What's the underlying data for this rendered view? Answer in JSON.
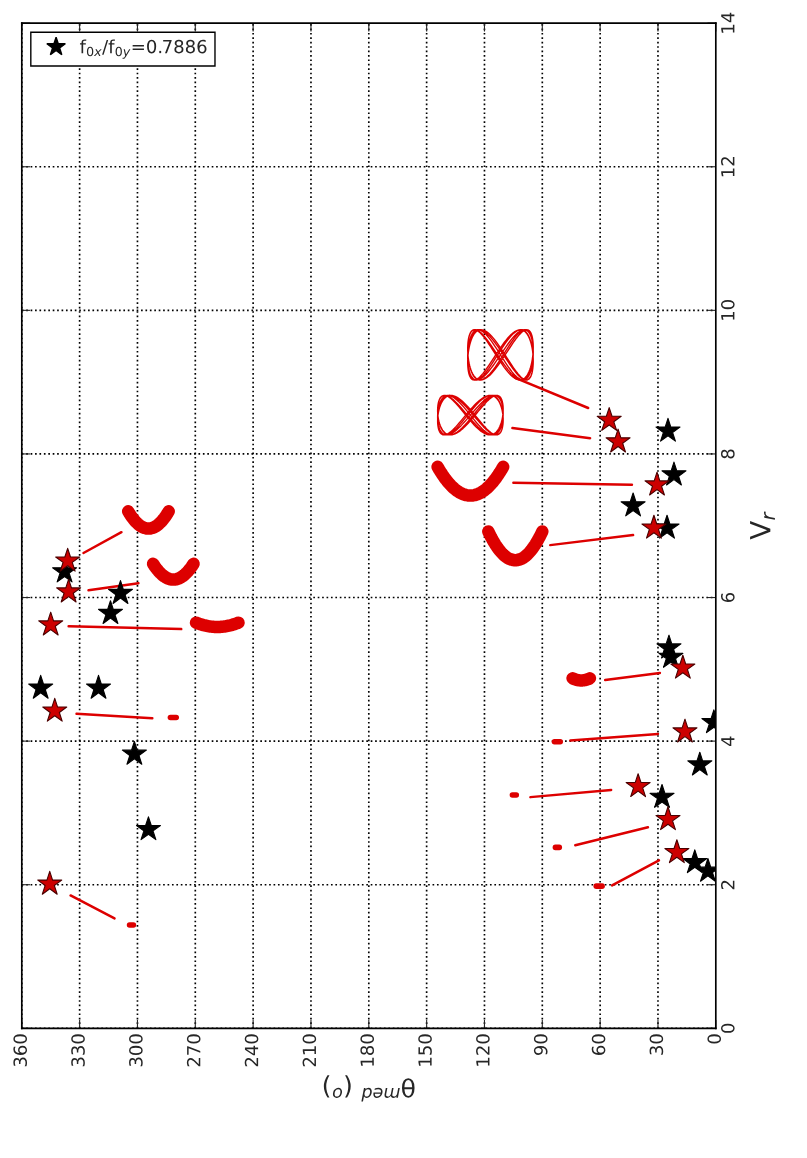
{
  "chart_data": {
    "type": "scatter",
    "xlabel": "θ$^{med}$ ($^{o}$)",
    "ylabel": "V$_{r}$",
    "xlim": [
      360,
      0
    ],
    "xticks": [
      360,
      330,
      300,
      270,
      240,
      210,
      180,
      150,
      120,
      90,
      60,
      30,
      0
    ],
    "ylim": [
      0,
      14
    ],
    "yticks": [
      0,
      2,
      4,
      6,
      8,
      10,
      12,
      14
    ],
    "grid": true,
    "legend": "top left",
    "marker": "star",
    "series": [
      {
        "name": "f$_{0x}$/f$_{0y}$=0.7886",
        "color": "#000000",
        "x": [
          337.8,
          308.8,
          314.0,
          350.2,
          320.2,
          301.6,
          294.3,
          24.8,
          21.7,
          42.9,
          25.3,
          24.3,
          23.3,
          1.0,
          8.3,
          27.9,
          10.9,
          4.1
        ],
        "values": [
          6.36,
          6.06,
          5.78,
          4.74,
          4.74,
          3.82,
          2.77,
          8.32,
          7.71,
          7.28,
          6.97,
          5.3,
          5.17,
          4.26,
          3.67,
          3.22,
          2.31,
          2.19
        ]
      },
      {
        "color": "#cc0000",
        "x": [
          336.2,
          335.7,
          345.0,
          342.9,
          345.5,
          55.3,
          50.7,
          30.5,
          32.1,
          17.1,
          16.0,
          40.3,
          24.8,
          20.2
        ],
        "values": [
          6.51,
          6.08,
          5.62,
          4.42,
          2.01,
          8.47,
          8.17,
          7.57,
          6.97,
          5.02,
          4.13,
          3.37,
          2.91,
          2.45
        ]
      }
    ]
  }
}
